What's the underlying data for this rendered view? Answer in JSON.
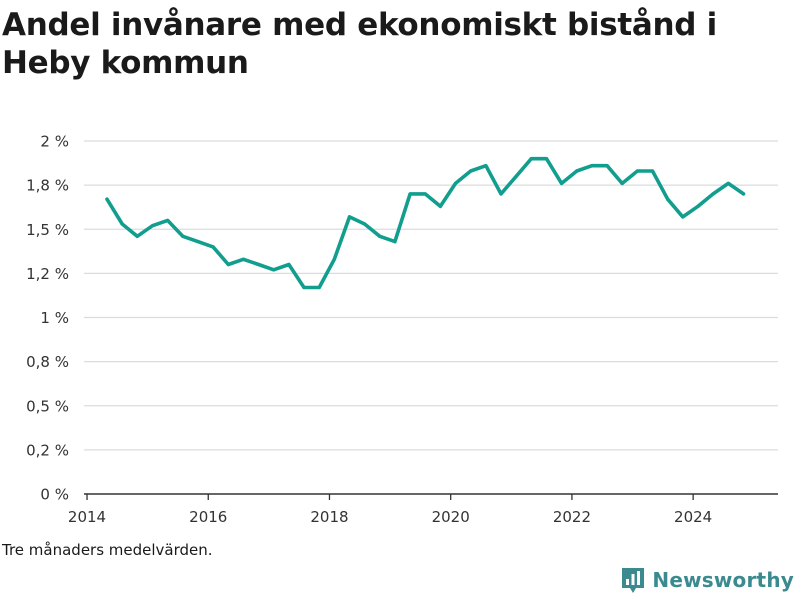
{
  "title": "Andel invånare med ekonomiskt bistånd i Heby kommun",
  "note": "Tre månaders medelvärden.",
  "brand": {
    "name": "Newsworthy",
    "icon": "bar-chart-logo-icon",
    "color": "#3a8a8f"
  },
  "chart_data": {
    "type": "line",
    "title": "Andel invånare med ekonomiskt bistånd i Heby kommun",
    "xlabel": "",
    "ylabel": "",
    "xlim": [
      2013.95,
      2025.4
    ],
    "ylim": [
      0,
      2.0
    ],
    "grid": true,
    "line_color": "#119e8e",
    "y_ticks": [
      {
        "value": 0,
        "label": "0 %"
      },
      {
        "value": 0.25,
        "label": "0,2 %"
      },
      {
        "value": 0.5,
        "label": "0,5 %"
      },
      {
        "value": 0.75,
        "label": "0,8 %"
      },
      {
        "value": 1.0,
        "label": "1 %"
      },
      {
        "value": 1.25,
        "label": "1,2 %"
      },
      {
        "value": 1.5,
        "label": "1,5 %"
      },
      {
        "value": 1.75,
        "label": "1,8 %"
      },
      {
        "value": 2.0,
        "label": "2 %"
      }
    ],
    "x_ticks": [
      {
        "value": 2014,
        "label": "2014"
      },
      {
        "value": 2016,
        "label": "2016"
      },
      {
        "value": 2018,
        "label": "2018"
      },
      {
        "value": 2020,
        "label": "2020"
      },
      {
        "value": 2022,
        "label": "2022"
      },
      {
        "value": 2024,
        "label": "2024"
      }
    ],
    "series": [
      {
        "x": [
          2014.33,
          2014.58,
          2014.83,
          2015.08,
          2015.33,
          2015.58,
          2015.83,
          2016.08,
          2016.33,
          2016.58,
          2016.83,
          2017.08,
          2017.33,
          2017.58,
          2017.83,
          2018.08,
          2018.33,
          2018.58,
          2018.83,
          2019.08,
          2019.33,
          2019.58,
          2019.83,
          2020.08,
          2020.33,
          2020.58,
          2020.83,
          2021.08,
          2021.33,
          2021.58,
          2021.83,
          2022.08,
          2022.33,
          2022.58,
          2022.83,
          2023.08,
          2023.33,
          2023.58,
          2023.83,
          2024.08,
          2024.33,
          2024.58,
          2024.83
        ],
        "y": [
          1.67,
          1.53,
          1.46,
          1.52,
          1.55,
          1.46,
          1.43,
          1.4,
          1.3,
          1.33,
          1.3,
          1.27,
          1.3,
          1.17,
          1.17,
          1.33,
          1.57,
          1.53,
          1.46,
          1.43,
          1.7,
          1.7,
          1.63,
          1.76,
          1.83,
          1.86,
          1.7,
          1.8,
          1.9,
          1.9,
          1.76,
          1.83,
          1.86,
          1.86,
          1.76,
          1.83,
          1.83,
          1.67,
          1.57,
          1.63,
          1.7,
          1.76,
          1.7
        ]
      }
    ]
  }
}
